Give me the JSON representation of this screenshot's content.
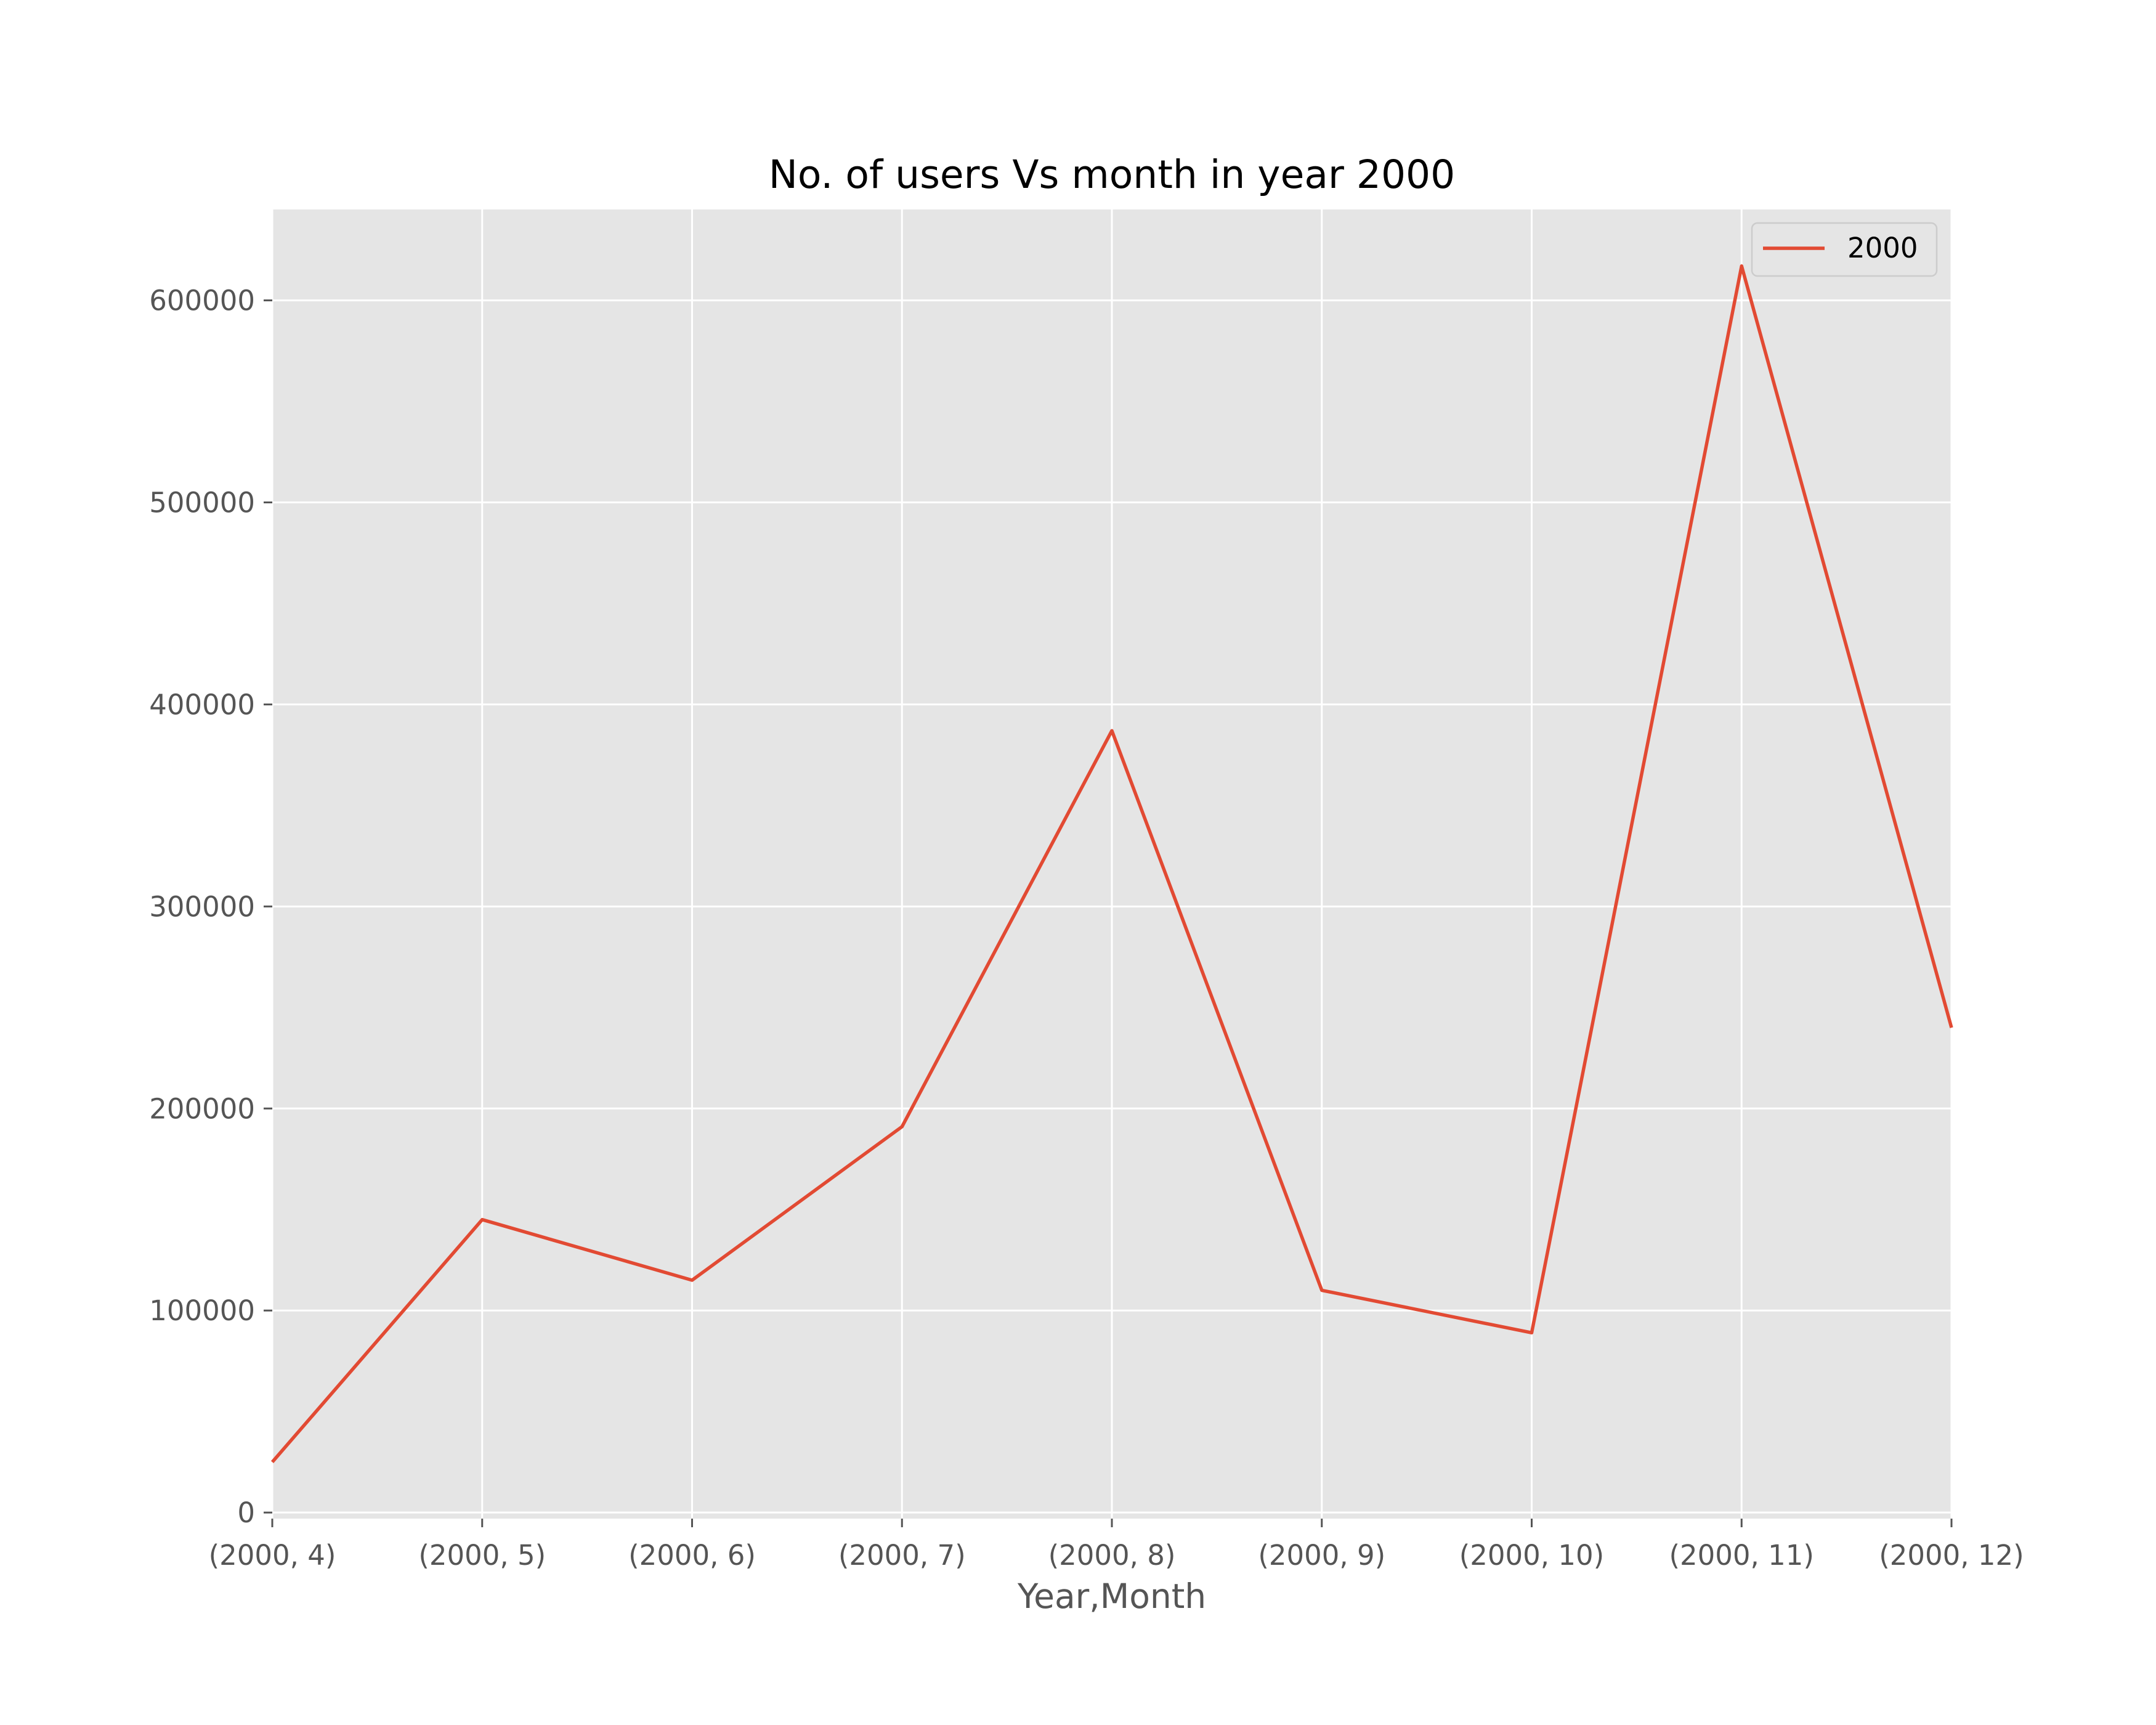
{
  "chart_data": {
    "type": "line",
    "title": "No. of users Vs month in year 2000",
    "xlabel": "Year,Month",
    "ylabel": "",
    "categories": [
      "(2000, 4)",
      "(2000, 5)",
      "(2000, 6)",
      "(2000, 7)",
      "(2000, 8)",
      "(2000, 9)",
      "(2000, 10)",
      "(2000, 11)",
      "(2000, 12)"
    ],
    "series": [
      {
        "name": "2000",
        "color": "#e24a33",
        "values": [
          25000,
          145000,
          115000,
          191000,
          387000,
          110000,
          89000,
          617000,
          240000
        ]
      }
    ],
    "ylim": [
      -3000,
      645000
    ],
    "yticks": [
      0,
      100000,
      200000,
      300000,
      400000,
      500000,
      600000
    ],
    "ytick_labels": [
      "0",
      "100000",
      "200000",
      "300000",
      "400000",
      "500000",
      "600000"
    ],
    "grid": true,
    "legend_position": "upper right",
    "colors": {
      "plot_background": "#e5e5e5",
      "grid": "#ffffff",
      "text": "#555555"
    }
  }
}
